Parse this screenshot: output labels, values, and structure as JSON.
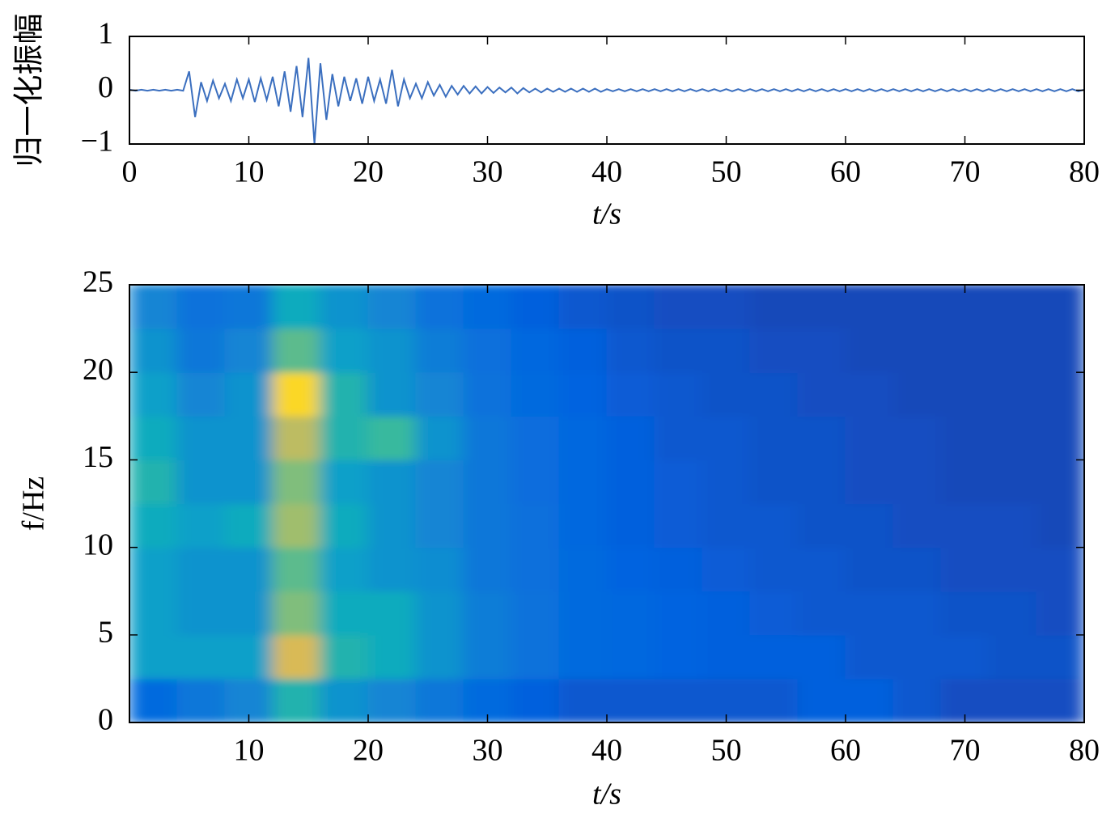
{
  "chart_data": [
    {
      "type": "line",
      "x_label": "t/s",
      "y_label": "归一化振幅",
      "color": "#3b6fbf",
      "xlim": [
        0,
        80
      ],
      "ylim": [
        -1,
        1
      ],
      "xticks": [
        0,
        10,
        20,
        30,
        40,
        50,
        60,
        70,
        80
      ],
      "yticks": [
        {
          "value": -1,
          "label": "−1"
        },
        0,
        1
      ],
      "x": [
        0,
        0.5,
        1,
        1.5,
        2,
        2.5,
        3,
        3.5,
        4,
        4.5,
        5,
        5.5,
        6,
        6.5,
        7,
        7.5,
        8,
        8.5,
        9,
        9.5,
        10,
        10.5,
        11,
        11.5,
        12,
        12.5,
        13,
        13.5,
        14,
        14.5,
        15,
        15.5,
        16,
        16.5,
        17,
        17.5,
        18,
        18.5,
        19,
        19.5,
        20,
        20.5,
        21,
        21.5,
        22,
        22.5,
        23,
        23.5,
        24,
        24.5,
        25,
        25.5,
        26,
        26.5,
        27,
        27.5,
        28,
        28.5,
        29,
        29.5,
        30,
        30.5,
        31,
        31.5,
        32,
        32.5,
        33,
        33.5,
        34,
        34.5,
        35,
        35.5,
        36,
        36.5,
        37,
        37.5,
        38,
        38.5,
        39,
        39.5,
        40,
        40.5,
        41,
        41.5,
        42,
        42.5,
        43,
        43.5,
        44,
        44.5,
        45,
        45.5,
        46,
        46.5,
        47,
        47.5,
        48,
        48.5,
        49,
        49.5,
        50,
        50.5,
        51,
        51.5,
        52,
        52.5,
        53,
        53.5,
        54,
        54.5,
        55,
        55.5,
        56,
        56.5,
        57,
        57.5,
        58,
        58.5,
        59,
        59.5,
        60,
        60.5,
        61,
        61.5,
        62,
        62.5,
        63,
        63.5,
        64,
        64.5,
        65,
        65.5,
        66,
        66.5,
        67,
        67.5,
        68,
        68.5,
        69,
        69.5,
        70,
        70.5,
        71,
        71.5,
        72,
        72.5,
        73,
        73.5,
        74,
        74.5,
        75,
        75.5,
        76,
        76.5,
        77,
        77.5,
        78,
        78.5,
        79,
        79.5,
        80
      ],
      "values": [
        0.01,
        -0.01,
        0.01,
        -0.01,
        0.01,
        -0.01,
        0.01,
        -0.01,
        0.01,
        -0.01,
        0.35,
        -0.5,
        0.15,
        -0.2,
        0.18,
        -0.15,
        0.12,
        -0.2,
        0.2,
        -0.15,
        0.2,
        -0.22,
        0.22,
        -0.18,
        0.25,
        -0.3,
        0.35,
        -0.4,
        0.45,
        -0.5,
        0.6,
        -1,
        0.5,
        -0.55,
        0.3,
        -0.3,
        0.25,
        -0.2,
        0.22,
        -0.25,
        0.25,
        -0.2,
        0.2,
        -0.25,
        0.38,
        -0.3,
        0.2,
        -0.15,
        0.12,
        -0.15,
        0.15,
        -0.1,
        0.1,
        -0.12,
        0.08,
        -0.08,
        0.08,
        -0.06,
        0.07,
        -0.06,
        0.06,
        -0.05,
        0.05,
        -0.04,
        0.05,
        -0.06,
        0.04,
        -0.04,
        0.03,
        -0.04,
        0.03,
        -0.03,
        0.03,
        -0.03,
        0.03,
        -0.03,
        0.03,
        -0.03,
        0.03,
        -0.03,
        0.02,
        -0.02,
        0.02,
        -0.02,
        0.02,
        -0.02,
        0.02,
        -0.02,
        0.02,
        -0.02,
        0.02,
        -0.02,
        0.02,
        -0.02,
        0.02,
        -0.02,
        0.02,
        -0.02,
        0.02,
        -0.02,
        0.02,
        -0.02,
        0.02,
        -0.02,
        0.02,
        -0.02,
        0.02,
        -0.02,
        0.02,
        -0.02,
        0.02,
        -0.02,
        0.02,
        -0.02,
        0.02,
        -0.02,
        0.02,
        -0.02,
        0.02,
        -0.02,
        0.02,
        -0.02,
        0.02,
        -0.02,
        0.02,
        -0.02,
        0.02,
        -0.02,
        0.02,
        -0.02,
        0.02,
        -0.02,
        0.02,
        -0.02,
        0.02,
        -0.02,
        0.02,
        -0.02,
        0.02,
        -0.02,
        0.02,
        -0.02,
        0.02,
        -0.02,
        0.02,
        -0.02,
        0.02,
        -0.02,
        0.02,
        -0.02,
        0.02,
        -0.02,
        0.02,
        -0.02,
        0.02,
        -0.02,
        0.02,
        -0.02,
        0.02,
        -0.02,
        0.01
      ]
    },
    {
      "type": "heatmap",
      "x_label": "t/s",
      "y_label": "f/Hz",
      "colormap": "parula",
      "xlim": [
        0,
        80
      ],
      "ylim": [
        0,
        25
      ],
      "xticks": [
        10,
        20,
        30,
        40,
        50,
        60,
        70,
        80
      ],
      "yticks": [
        0,
        5,
        10,
        15,
        20,
        25
      ],
      "x_bins": [
        0,
        4,
        8,
        12,
        16,
        20,
        24,
        28,
        32,
        36,
        40,
        44,
        48,
        52,
        56,
        60,
        64,
        68,
        72,
        76,
        80
      ],
      "y_bins": [
        0,
        2.5,
        5,
        7.5,
        10,
        12.5,
        15,
        17.5,
        20,
        22.5,
        25
      ],
      "values": [
        [
          0.15,
          0.2,
          0.25,
          0.45,
          0.3,
          0.25,
          0.2,
          0.15,
          0.12,
          0.1,
          0.1,
          0.1,
          0.1,
          0.1,
          0.12,
          0.12,
          0.1,
          0.08,
          0.08,
          0.08
        ],
        [
          0.35,
          0.35,
          0.35,
          0.75,
          0.45,
          0.4,
          0.3,
          0.22,
          0.18,
          0.15,
          0.14,
          0.13,
          0.12,
          0.12,
          0.12,
          0.1,
          0.1,
          0.1,
          0.09,
          0.09
        ],
        [
          0.35,
          0.3,
          0.3,
          0.6,
          0.4,
          0.4,
          0.3,
          0.22,
          0.18,
          0.15,
          0.14,
          0.13,
          0.12,
          0.11,
          0.1,
          0.1,
          0.1,
          0.09,
          0.09,
          0.08
        ],
        [
          0.35,
          0.3,
          0.3,
          0.55,
          0.35,
          0.3,
          0.28,
          0.2,
          0.17,
          0.15,
          0.13,
          0.12,
          0.11,
          0.1,
          0.1,
          0.09,
          0.09,
          0.08,
          0.08,
          0.08
        ],
        [
          0.4,
          0.35,
          0.4,
          0.65,
          0.4,
          0.3,
          0.25,
          0.2,
          0.17,
          0.14,
          0.12,
          0.11,
          0.1,
          0.1,
          0.09,
          0.09,
          0.08,
          0.08,
          0.08,
          0.07
        ],
        [
          0.45,
          0.3,
          0.3,
          0.6,
          0.35,
          0.3,
          0.25,
          0.2,
          0.16,
          0.14,
          0.12,
          0.11,
          0.1,
          0.09,
          0.09,
          0.08,
          0.08,
          0.07,
          0.07,
          0.07
        ],
        [
          0.4,
          0.3,
          0.3,
          0.7,
          0.45,
          0.5,
          0.3,
          0.2,
          0.16,
          0.14,
          0.12,
          0.1,
          0.1,
          0.09,
          0.09,
          0.08,
          0.08,
          0.07,
          0.07,
          0.07
        ],
        [
          0.35,
          0.25,
          0.3,
          0.9,
          0.45,
          0.3,
          0.25,
          0.18,
          0.15,
          0.13,
          0.11,
          0.1,
          0.09,
          0.09,
          0.08,
          0.08,
          0.07,
          0.07,
          0.07,
          0.07
        ],
        [
          0.3,
          0.2,
          0.25,
          0.55,
          0.35,
          0.3,
          0.22,
          0.17,
          0.14,
          0.12,
          0.1,
          0.09,
          0.09,
          0.08,
          0.08,
          0.07,
          0.07,
          0.07,
          0.07,
          0.07
        ],
        [
          0.25,
          0.18,
          0.2,
          0.4,
          0.3,
          0.25,
          0.18,
          0.15,
          0.12,
          0.1,
          0.09,
          0.08,
          0.08,
          0.07,
          0.07,
          0.07,
          0.07,
          0.07,
          0.07,
          0.07
        ]
      ]
    }
  ]
}
